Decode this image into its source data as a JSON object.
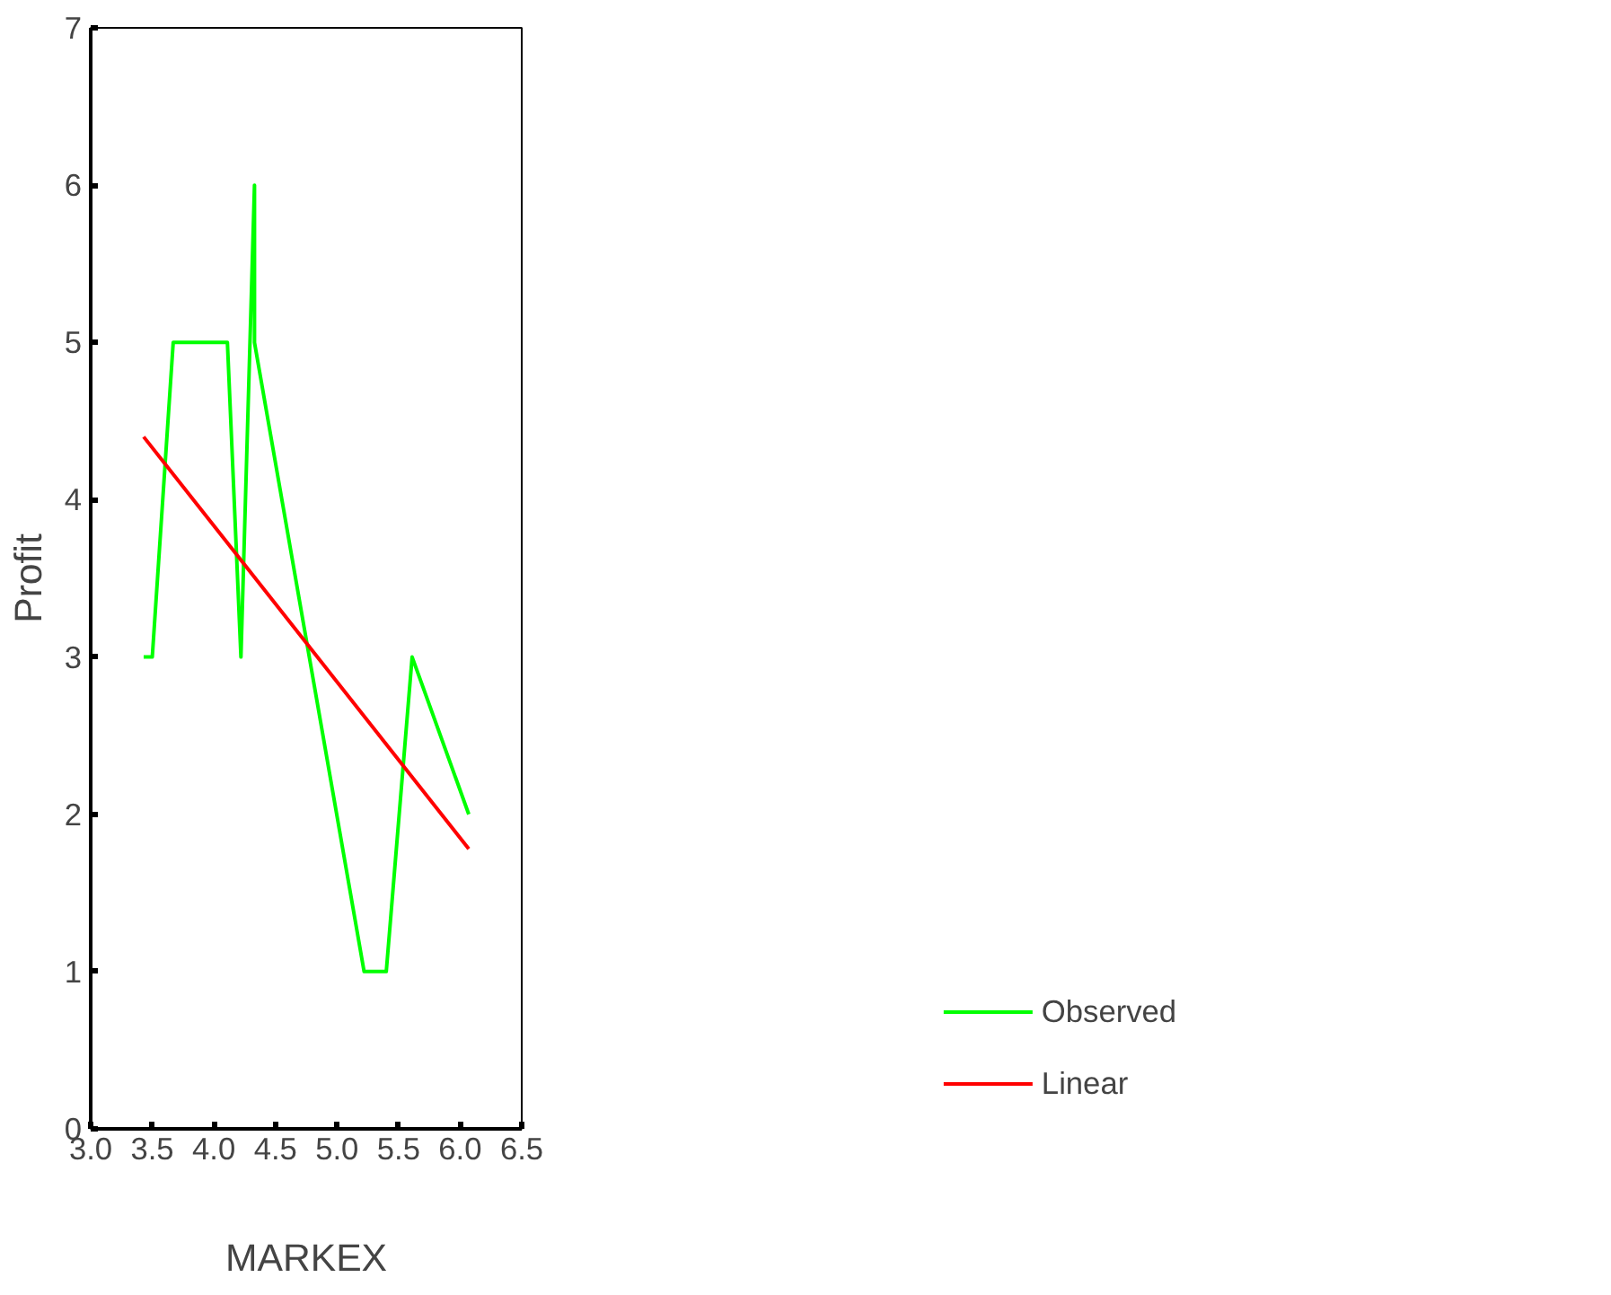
{
  "chart_data": {
    "type": "line",
    "xlabel": "MARKEX",
    "ylabel": "Profit",
    "series": [
      {
        "name": "Observed",
        "color": "#00ff00",
        "x": [
          3.43,
          3.5,
          3.67,
          4.11,
          4.22,
          4.33,
          4.33,
          5.22,
          5.4,
          5.61,
          6.07
        ],
        "values": [
          3,
          3,
          5,
          5,
          3,
          6,
          5,
          1,
          1,
          3,
          2
        ]
      },
      {
        "name": "Linear",
        "color": "#ff0000",
        "x": [
          3.43,
          6.07
        ],
        "values": [
          4.4,
          1.78
        ]
      }
    ],
    "xlim": [
      3,
      6.5
    ],
    "ylim": [
      0,
      7
    ],
    "xticks": [
      {
        "value": 3,
        "label": "3.0"
      },
      {
        "value": 3.5,
        "label": "3.5"
      },
      {
        "value": 4,
        "label": "4.0"
      },
      {
        "value": 4.5,
        "label": "4.5"
      },
      {
        "value": 5,
        "label": "5.0"
      },
      {
        "value": 5.5,
        "label": "5.5"
      },
      {
        "value": 6,
        "label": "6.0"
      },
      {
        "value": 6.5,
        "label": "6.5"
      }
    ],
    "yticks": [
      0,
      1,
      2,
      3,
      4,
      5,
      6,
      7
    ],
    "grid": false,
    "legend": "bottom right"
  }
}
